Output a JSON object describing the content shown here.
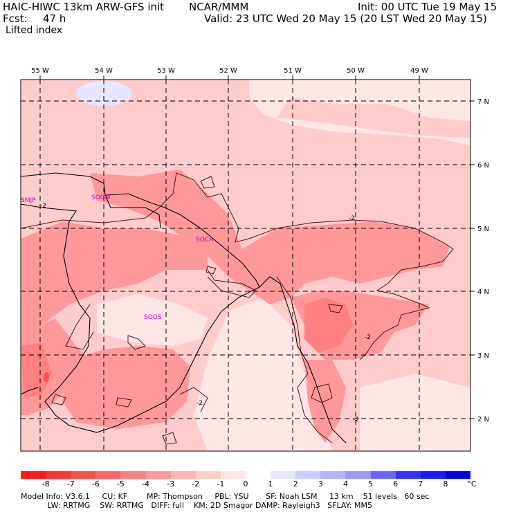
{
  "header": {
    "model": "HAIC-HIWC 13km ARW-GFS init",
    "org": "NCAR/MMM",
    "init": "Init: 00 UTC Tue 19 May 15",
    "fcst_label": "Fcst:",
    "fcst_value": "47 h",
    "valid": "Valid: 23 UTC Wed 20 May 15 (20 LST Wed 20 May 15)",
    "field": "Lifted index"
  },
  "map": {
    "longitude_labels": [
      "55 W",
      "54 W",
      "53 W",
      "52 W",
      "51 W",
      "50 W",
      "49 W"
    ],
    "latitude_labels": [
      "7 N",
      "6 N",
      "5 N",
      "4 N",
      "3 N",
      "2 N"
    ],
    "stations": [
      "SMJP",
      "SOGM",
      "SOCA",
      "SOOS"
    ],
    "contour_labels": [
      "-2",
      "-2",
      "-2",
      "-2",
      "-2"
    ]
  },
  "colorbar": {
    "ticks": [
      "-8",
      "-7",
      "-6",
      "-5",
      "-4",
      "-3",
      "-2",
      "-1",
      "0",
      "1",
      "2",
      "3",
      "4",
      "5",
      "6",
      "7",
      "8"
    ],
    "unit": "°C",
    "colors": [
      "#ff1a1a",
      "#ff3333",
      "#ff4d4d",
      "#ff6666",
      "#ff8080",
      "#ff9999",
      "#ffb3b3",
      "#ffcccc",
      "#ffe6e6",
      "#ffffff",
      "#e6e6ff",
      "#ccccff",
      "#b3b3ff",
      "#9999ff",
      "#6666ff",
      "#3333ff",
      "#1a1aff",
      "#0000e6"
    ]
  },
  "footer": {
    "line1": "Model Info: V3.6.1     CU: KF        MP: Thompson     PBL: YSU       SF: Noah LSM     13 km    51 levels   60 sec",
    "line2": "           LW: RRTMG    SW: RRTMG   DIFF: full    KM: 2D Smagor DAMP: Rayleigh3   SFLAY: MM5"
  }
}
